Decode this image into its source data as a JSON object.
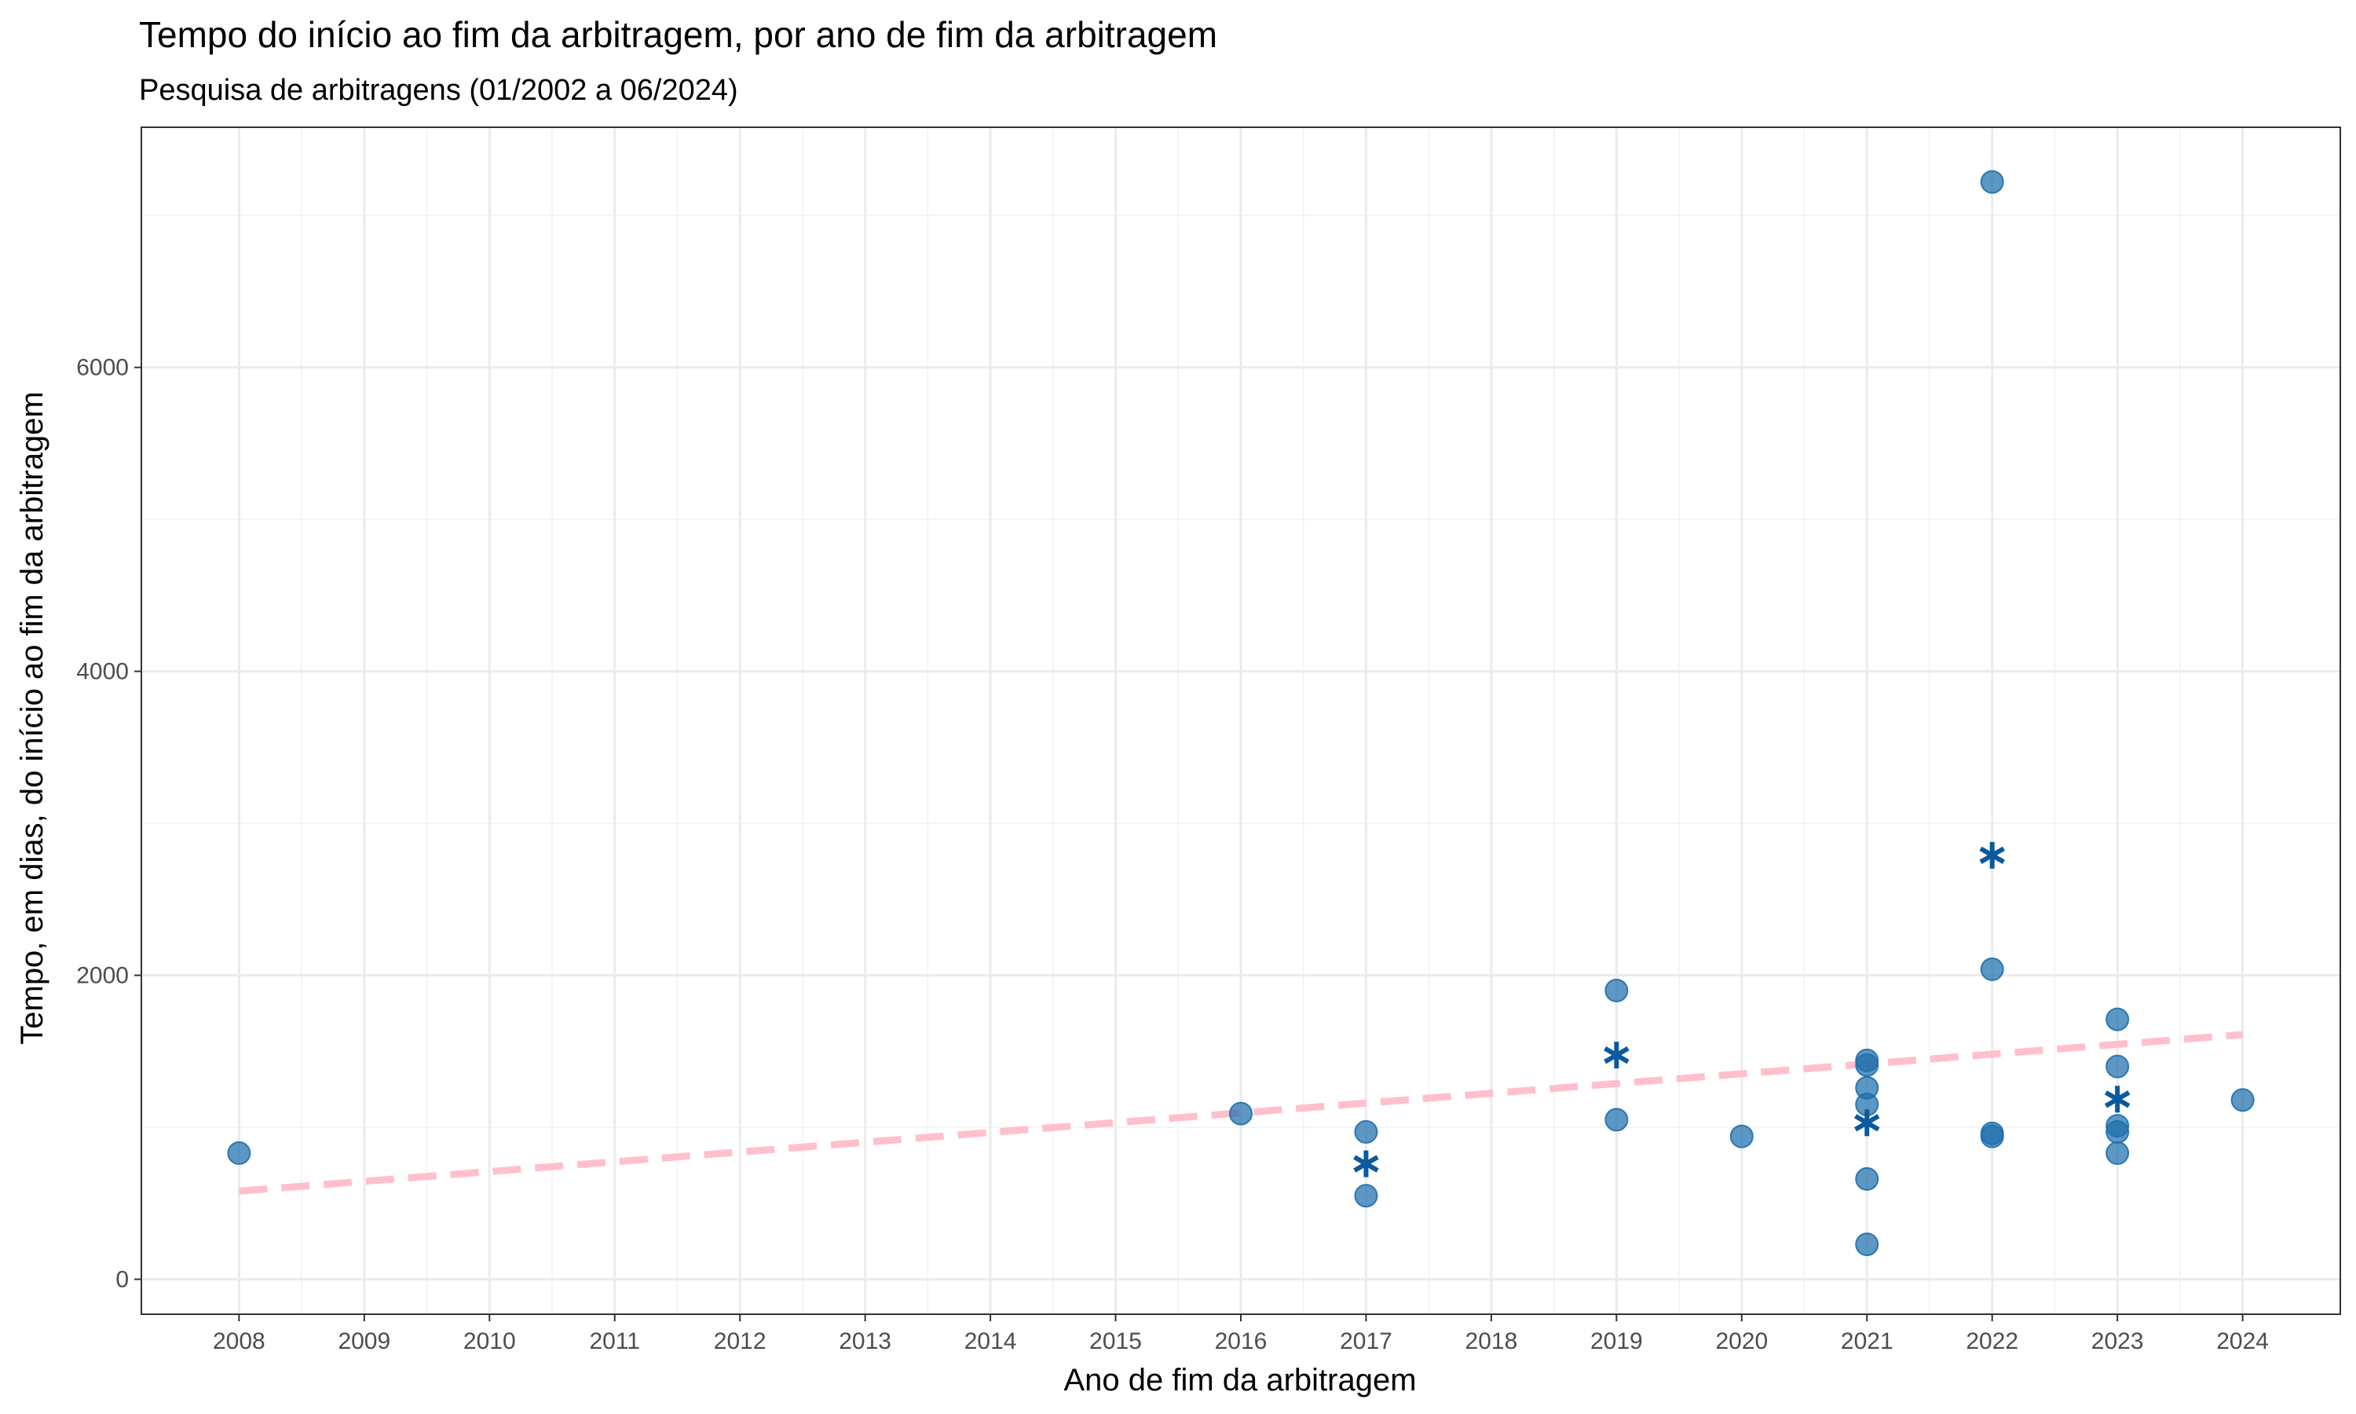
{
  "chart_data": {
    "type": "scatter",
    "title": "Tempo do início ao fim da arbitragem, por ano de fim da arbitragem",
    "subtitle": "Pesquisa de arbitragens (01/2002 a 06/2024)",
    "xlabel": "Ano de fim da arbitragem",
    "ylabel": "Tempo, em dias, do início ao fim da arbitragem",
    "xlim": [
      2007.22,
      2024.78
    ],
    "ylim": [
      -230,
      7580
    ],
    "x_ticks": [
      2008,
      2009,
      2010,
      2011,
      2012,
      2013,
      2014,
      2015,
      2016,
      2017,
      2018,
      2019,
      2020,
      2021,
      2022,
      2023,
      2024
    ],
    "y_ticks": [
      0,
      2000,
      4000,
      6000
    ],
    "y_minor": [
      1000,
      3000,
      5000,
      7000
    ],
    "grid": true,
    "points": [
      {
        "x": 2008,
        "y": 830
      },
      {
        "x": 2016,
        "y": 1090
      },
      {
        "x": 2017,
        "y": 970
      },
      {
        "x": 2017,
        "y": 550
      },
      {
        "x": 2019,
        "y": 1900
      },
      {
        "x": 2019,
        "y": 1050
      },
      {
        "x": 2020,
        "y": 940
      },
      {
        "x": 2021,
        "y": 1440
      },
      {
        "x": 2021,
        "y": 1410
      },
      {
        "x": 2021,
        "y": 1260
      },
      {
        "x": 2021,
        "y": 1150
      },
      {
        "x": 2021,
        "y": 660
      },
      {
        "x": 2021,
        "y": 230
      },
      {
        "x": 2022,
        "y": 7220
      },
      {
        "x": 2022,
        "y": 2040
      },
      {
        "x": 2022,
        "y": 960
      },
      {
        "x": 2022,
        "y": 940
      },
      {
        "x": 2023,
        "y": 1710
      },
      {
        "x": 2023,
        "y": 1400
      },
      {
        "x": 2023,
        "y": 1010
      },
      {
        "x": 2023,
        "y": 970
      },
      {
        "x": 2023,
        "y": 830
      },
      {
        "x": 2024,
        "y": 1180
      }
    ],
    "means": [
      {
        "x": 2017,
        "y": 760
      },
      {
        "x": 2019,
        "y": 1475
      },
      {
        "x": 2021,
        "y": 1030
      },
      {
        "x": 2022,
        "y": 2790
      },
      {
        "x": 2023,
        "y": 1185
      }
    ],
    "trend": {
      "x": [
        2008,
        2024
      ],
      "y": [
        580,
        1610
      ]
    },
    "colors": {
      "points": "#1f6fad",
      "means": "#0a5a9e",
      "trend": "#ffc0cb",
      "grid": "#ebebeb",
      "border": "#333333"
    }
  }
}
